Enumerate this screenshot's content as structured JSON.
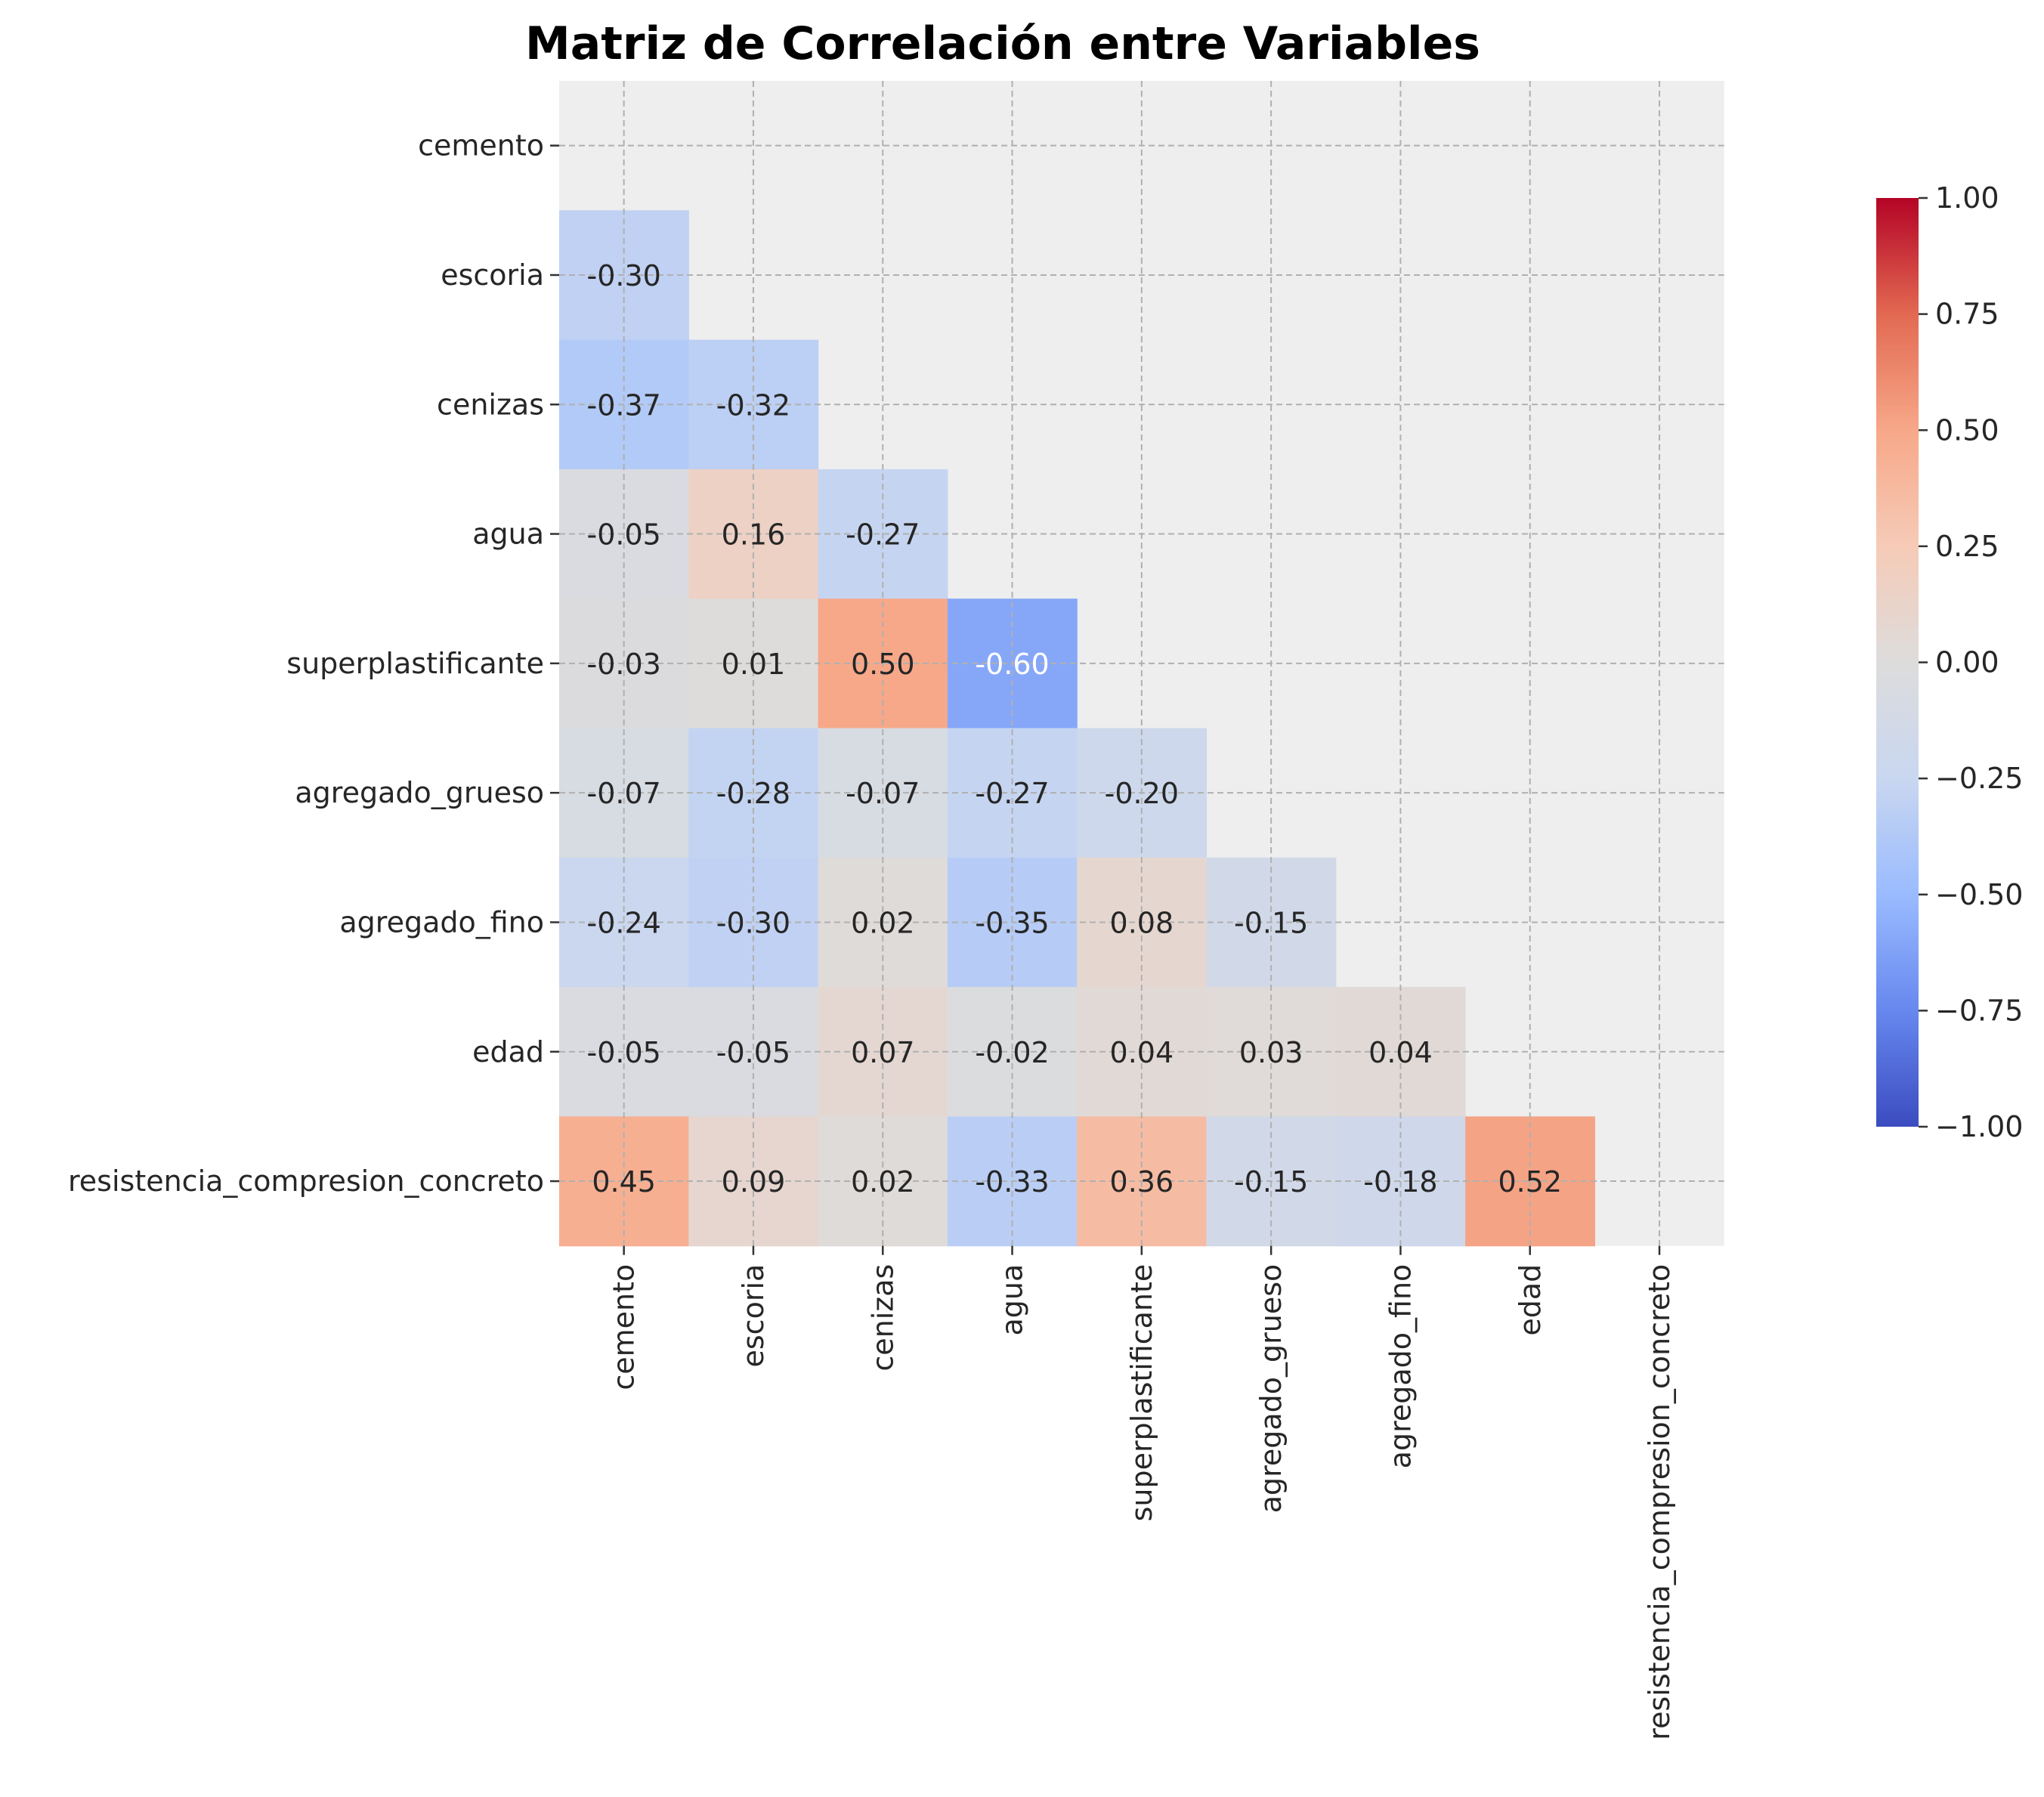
{
  "chart_data": {
    "type": "heatmap",
    "title": "Matriz de Correlación entre Variables",
    "xlabel": "",
    "ylabel": "",
    "variables": [
      "cemento",
      "escoria",
      "cenizas",
      "agua",
      "superplastificante",
      "agregado_grueso",
      "agregado_fino",
      "edad",
      "resistencia_compresion_concreto"
    ],
    "matrix": [
      [
        null,
        null,
        null,
        null,
        null,
        null,
        null,
        null,
        null
      ],
      [
        -0.3,
        null,
        null,
        null,
        null,
        null,
        null,
        null,
        null
      ],
      [
        -0.37,
        -0.32,
        null,
        null,
        null,
        null,
        null,
        null,
        null
      ],
      [
        -0.05,
        0.16,
        -0.27,
        null,
        null,
        null,
        null,
        null,
        null
      ],
      [
        -0.03,
        0.01,
        0.5,
        -0.6,
        null,
        null,
        null,
        null,
        null
      ],
      [
        -0.07,
        -0.28,
        -0.07,
        -0.27,
        -0.2,
        null,
        null,
        null,
        null
      ],
      [
        -0.24,
        -0.3,
        0.02,
        -0.35,
        0.08,
        -0.15,
        null,
        null,
        null
      ],
      [
        -0.05,
        -0.05,
        0.07,
        -0.02,
        0.04,
        0.03,
        0.04,
        null,
        null
      ],
      [
        0.45,
        0.09,
        0.02,
        -0.33,
        0.36,
        -0.15,
        -0.18,
        0.52,
        null
      ]
    ],
    "mask": "upper-triangle-and-diagonal",
    "value_format": "0.00",
    "colormap": "coolwarm",
    "colormap_stops": [
      "#3b4cc0",
      "#6788ee",
      "#9abbff",
      "#c9d7f0",
      "#dddcdc",
      "#f6cbb7",
      "#f7a889",
      "#e26952",
      "#b40426"
    ],
    "vlim": [
      -1.0,
      1.0
    ],
    "colorbar_ticks": [
      "1.00",
      "0.75",
      "0.50",
      "0.25",
      "0.00",
      "−0.25",
      "−0.50",
      "−0.75",
      "−1.00"
    ],
    "background_color": "#eeeeee",
    "grid": true,
    "grid_style": "dashed",
    "legend": "colorbar-right"
  }
}
